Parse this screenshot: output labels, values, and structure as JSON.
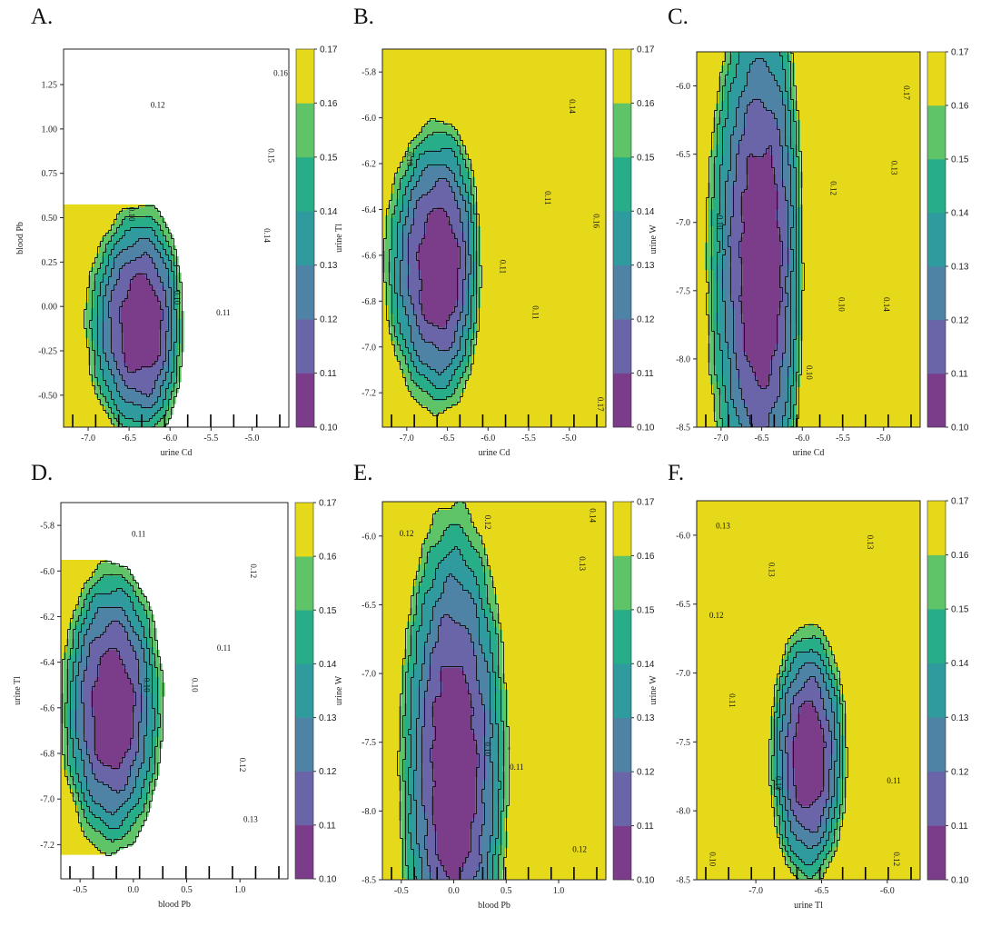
{
  "colors": {
    "levels": [
      "#7b3c8a",
      "#6a64a8",
      "#4f83a6",
      "#2f9b9e",
      "#27ae88",
      "#5fc367",
      "#e6d91a"
    ],
    "contour_line": "#111111",
    "rug": "#000000"
  },
  "chart_data": [
    {
      "type": "heatmap",
      "panel": "A.",
      "xlabel": "urine Cd",
      "ylabel": "blood Pb",
      "xlim": [
        -7.3,
        -4.55
      ],
      "ylim": [
        -0.68,
        1.45
      ],
      "xticks": [
        -7.0,
        -6.5,
        -6.0,
        -5.5,
        -5.0
      ],
      "xtick_labels": [
        "-7.0",
        "-6.5",
        "-6.0",
        "-5.5",
        "-5.0"
      ],
      "yticks": [
        -0.5,
        -0.25,
        0.0,
        0.25,
        0.5,
        0.75,
        1.0,
        1.25
      ],
      "ytick_labels": [
        "-0.50",
        "-0.25",
        "0.00",
        "0.25",
        "0.50",
        "0.75",
        "1.00",
        "1.25"
      ],
      "min": {
        "x": -6.35,
        "y": -0.1
      },
      "ax": 0.011,
      "ay": 0.006,
      "bx": 0.024,
      "by": 0.0,
      "colorbar": {
        "levels": [
          0.1,
          0.11,
          0.12,
          0.13,
          0.14,
          0.15,
          0.16,
          0.17
        ],
        "labels": [
          "0.10",
          "0.11",
          "0.12",
          "0.13",
          "0.14",
          "0.15",
          "0.16",
          "0.17"
        ]
      },
      "contour_labels": [
        {
          "text": "0.12",
          "x": -6.15,
          "y": 1.12
        },
        {
          "text": "0.10",
          "x": -6.5,
          "y": 0.52
        },
        {
          "text": "0.10",
          "x": -5.95,
          "y": 0.05
        },
        {
          "text": "0.11",
          "x": -5.35,
          "y": -0.05
        },
        {
          "text": "0.14",
          "x": -4.85,
          "y": 0.4
        },
        {
          "text": "0.15",
          "x": -4.8,
          "y": 0.85
        },
        {
          "text": "0.16",
          "x": -4.65,
          "y": 1.3
        }
      ]
    },
    {
      "type": "heatmap",
      "panel": "B.",
      "xlabel": "urine Cd",
      "ylabel": "urine Tl",
      "xlim": [
        -7.3,
        -4.55
      ],
      "ylim": [
        -7.35,
        -5.7
      ],
      "xticks": [
        -7.0,
        -6.5,
        -6.0,
        -5.5,
        -5.0
      ],
      "xtick_labels": [
        "-7.0",
        "-6.5",
        "-6.0",
        "-5.5",
        "-5.0"
      ],
      "yticks": [
        -7.2,
        -7.0,
        -6.8,
        -6.6,
        -6.4,
        -6.2,
        -6.0,
        -5.8
      ],
      "ytick_labels": [
        "-7.2",
        "-7.0",
        "-6.8",
        "-6.6",
        "-6.4",
        "-6.2",
        "-6.0",
        "-5.8"
      ],
      "min": {
        "x": -6.6,
        "y": -6.65
      },
      "ax": 0.011,
      "ay": 0.004,
      "bx": 0.024,
      "by": 0.0,
      "colorbar": {
        "levels": [
          0.1,
          0.11,
          0.12,
          0.13,
          0.14,
          0.15,
          0.16,
          0.17
        ],
        "labels": [
          "0.10",
          "0.11",
          "0.12",
          "0.13",
          "0.14",
          "0.15",
          "0.16",
          "0.17"
        ]
      },
      "contour_labels": [
        {
          "text": "0.10",
          "x": -7.0,
          "y": -6.18
        },
        {
          "text": "0.11",
          "x": -5.85,
          "y": -6.65
        },
        {
          "text": "0.11",
          "x": -5.45,
          "y": -6.85
        },
        {
          "text": "0.11",
          "x": -5.3,
          "y": -6.35
        },
        {
          "text": "0.14",
          "x": -5.0,
          "y": -5.95
        },
        {
          "text": "0.16",
          "x": -4.7,
          "y": -6.45
        },
        {
          "text": "0.17",
          "x": -4.65,
          "y": -7.25
        }
      ]
    },
    {
      "type": "heatmap",
      "panel": "C.",
      "xlabel": "urine Cd",
      "ylabel": "urine W",
      "xlim": [
        -7.3,
        -4.55
      ],
      "ylim": [
        -8.5,
        -5.75
      ],
      "xticks": [
        -7.0,
        -6.5,
        -6.0,
        -5.5,
        -5.0
      ],
      "xtick_labels": [
        "-7.0",
        "-6.5",
        "-6.0",
        "-5.5",
        "-5.0"
      ],
      "yticks": [
        -8.5,
        -8.0,
        -7.5,
        -7.0,
        -6.5,
        -6.0
      ],
      "ytick_labels": [
        "-8.5",
        "-8.0",
        "-7.5",
        "-7.0",
        "-6.5",
        "-6.0"
      ],
      "min": {
        "x": -6.5,
        "y": -7.3
      },
      "ax": 0.011,
      "ay": 0.001,
      "bx": 0.024,
      "by": 0.0,
      "colorbar": {
        "levels": [
          0.1,
          0.11,
          0.12,
          0.13,
          0.14,
          0.15,
          0.16,
          0.17
        ],
        "labels": [
          "0.10",
          "0.11",
          "0.12",
          "0.13",
          "0.14",
          "0.15",
          "0.16",
          "0.17"
        ]
      },
      "contour_labels": [
        {
          "text": "0.10",
          "x": -7.05,
          "y": -7.0
        },
        {
          "text": "0.12",
          "x": -5.65,
          "y": -6.75
        },
        {
          "text": "0.10",
          "x": -5.95,
          "y": -8.1
        },
        {
          "text": "0.10",
          "x": -5.55,
          "y": -7.6
        },
        {
          "text": "0.14",
          "x": -5.0,
          "y": -7.6
        },
        {
          "text": "0.13",
          "x": -4.9,
          "y": -6.6
        },
        {
          "text": "0.17",
          "x": -4.75,
          "y": -6.05
        }
      ]
    },
    {
      "type": "heatmap",
      "panel": "D.",
      "xlabel": "blood Pb",
      "ylabel": "urine Tl",
      "xlim": [
        -0.68,
        1.45
      ],
      "ylim": [
        -7.35,
        -5.7
      ],
      "xticks": [
        -0.5,
        0.0,
        0.5,
        1.0
      ],
      "xtick_labels": [
        "-0.5",
        "0.0",
        "0.5",
        "1.0"
      ],
      "yticks": [
        -7.2,
        -7.0,
        -6.8,
        -6.6,
        -6.4,
        -6.2,
        -6.0,
        -5.8
      ],
      "ytick_labels": [
        "-7.2",
        "-7.0",
        "-6.8",
        "-6.6",
        "-6.4",
        "-6.2",
        "-6.0",
        "-5.8"
      ],
      "min": {
        "x": -0.2,
        "y": -6.6
      },
      "ax": 0.012,
      "ay": 0.004,
      "bx": 0.0,
      "by": 0.0,
      "colorbar": {
        "levels": [
          0.1,
          0.11,
          0.12,
          0.13,
          0.14,
          0.15,
          0.16,
          0.17
        ],
        "labels": [
          "0.10",
          "0.11",
          "0.12",
          "0.13",
          "0.14",
          "0.15",
          "0.16",
          "0.17"
        ]
      },
      "contour_labels": [
        {
          "text": "0.11",
          "x": 0.05,
          "y": -5.85
        },
        {
          "text": "0.10",
          "x": 0.1,
          "y": -6.5
        },
        {
          "text": "0.10",
          "x": 0.55,
          "y": -6.5
        },
        {
          "text": "0.11",
          "x": 0.85,
          "y": -6.35
        },
        {
          "text": "0.12",
          "x": 1.1,
          "y": -6.0
        },
        {
          "text": "0.12",
          "x": 1.0,
          "y": -6.85
        },
        {
          "text": "0.13",
          "x": 1.1,
          "y": -7.1
        }
      ]
    },
    {
      "type": "heatmap",
      "panel": "E.",
      "xlabel": "blood Pb",
      "ylabel": "urine W",
      "xlim": [
        -0.68,
        1.45
      ],
      "ylim": [
        -8.5,
        -5.75
      ],
      "xticks": [
        -0.5,
        0.0,
        0.5,
        1.0
      ],
      "xtick_labels": [
        "-0.5",
        "0.0",
        "0.5",
        "1.0"
      ],
      "yticks": [
        -8.5,
        -8.0,
        -7.5,
        -7.0,
        -6.5,
        -6.0
      ],
      "ytick_labels": [
        "-8.5",
        "-8.0",
        "-7.5",
        "-7.0",
        "-6.5",
        "-6.0"
      ],
      "min": {
        "x": 0.0,
        "y": -7.7
      },
      "ax": 0.01,
      "ay": 0.0012,
      "bx": 0.0,
      "by": 0.0,
      "colorbar": {
        "levels": [
          0.1,
          0.11,
          0.12,
          0.13,
          0.14,
          0.15,
          0.16,
          0.17
        ],
        "labels": [
          "0.10",
          "0.11",
          "0.12",
          "0.13",
          "0.14",
          "0.15",
          "0.16",
          "0.17"
        ]
      },
      "contour_labels": [
        {
          "text": "0.12",
          "x": -0.45,
          "y": -6.0
        },
        {
          "text": "0.12",
          "x": 0.3,
          "y": -5.9
        },
        {
          "text": "0.10",
          "x": 0.3,
          "y": -7.55
        },
        {
          "text": "0.11",
          "x": 0.6,
          "y": -7.7
        },
        {
          "text": "0.13",
          "x": 1.2,
          "y": -6.2
        },
        {
          "text": "0.14",
          "x": 1.3,
          "y": -5.85
        },
        {
          "text": "0.12",
          "x": 1.2,
          "y": -8.3
        }
      ]
    },
    {
      "type": "heatmap",
      "panel": "F.",
      "xlabel": "urine Tl",
      "ylabel": "urine W",
      "xlim": [
        -7.45,
        -5.75
      ],
      "ylim": [
        -8.5,
        -5.75
      ],
      "xticks": [
        -7.0,
        -6.5,
        -6.0
      ],
      "xtick_labels": [
        "-7.0",
        "-6.5",
        "-6.0"
      ],
      "yticks": [
        -8.5,
        -8.0,
        -7.5,
        -7.0,
        -6.5,
        -6.0
      ],
      "ytick_labels": [
        "-8.5",
        "-8.0",
        "-7.5",
        "-7.0",
        "-6.5",
        "-6.0"
      ],
      "min": {
        "x": -6.6,
        "y": -7.6
      },
      "ax": 0.02,
      "ay": 0.005,
      "bx": 0.0,
      "by": 0.0,
      "colorbar": {
        "levels": [
          0.1,
          0.11,
          0.12,
          0.13,
          0.14,
          0.15,
          0.16,
          0.17
        ],
        "labels": [
          "0.10",
          "0.11",
          "0.12",
          "0.13",
          "0.14",
          "0.15",
          "0.16",
          "0.17"
        ]
      },
      "contour_labels": [
        {
          "text": "0.13",
          "x": -7.25,
          "y": -5.95
        },
        {
          "text": "0.13",
          "x": -6.9,
          "y": -6.25
        },
        {
          "text": "0.13",
          "x": -6.15,
          "y": -6.05
        },
        {
          "text": "0.12",
          "x": -7.3,
          "y": -6.6
        },
        {
          "text": "0.11",
          "x": -7.2,
          "y": -7.2
        },
        {
          "text": "0.10",
          "x": -6.85,
          "y": -7.8
        },
        {
          "text": "0.11",
          "x": -5.95,
          "y": -7.8
        },
        {
          "text": "0.10",
          "x": -7.35,
          "y": -8.35
        },
        {
          "text": "0.12",
          "x": -5.95,
          "y": -8.35
        }
      ]
    }
  ]
}
